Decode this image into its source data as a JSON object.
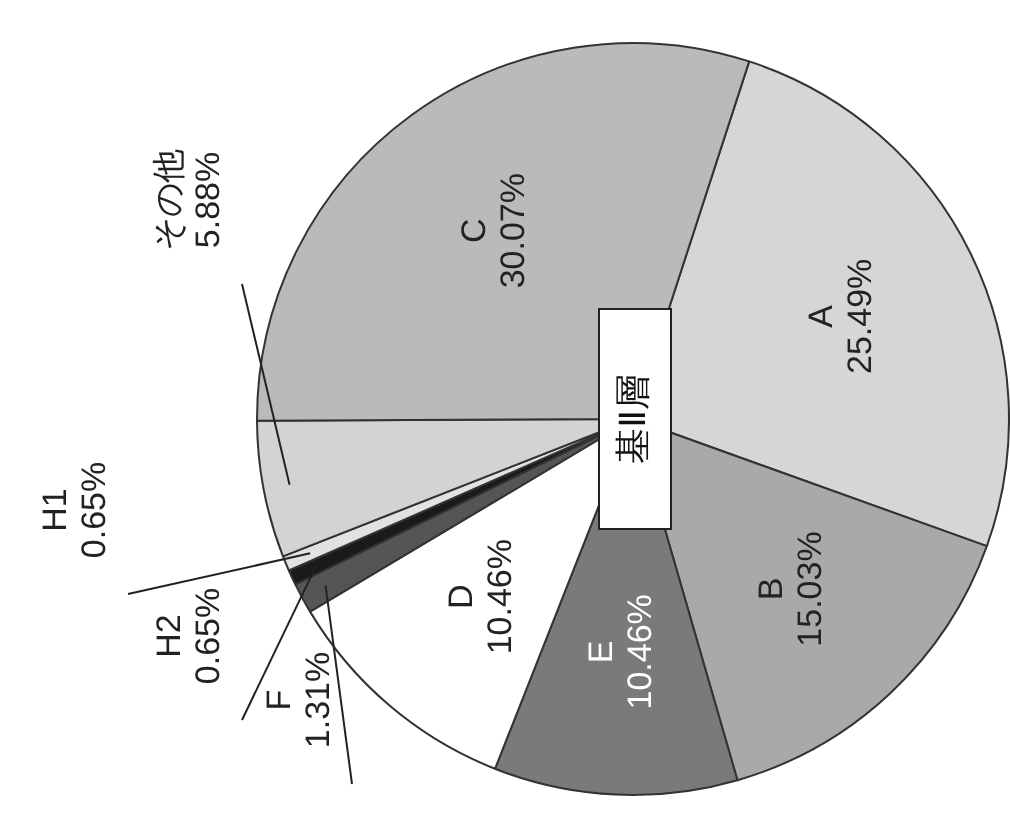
{
  "chart_data": {
    "type": "pie",
    "title": "基Ⅱ層",
    "categories": [
      "A",
      "B",
      "E",
      "D",
      "F",
      "H2",
      "H1",
      "その他",
      "C"
    ],
    "values": [
      25.49,
      15.03,
      10.46,
      10.46,
      1.31,
      0.65,
      0.65,
      5.88,
      30.07
    ],
    "value_labels": [
      "25.49%",
      "15.03%",
      "10.46%",
      "10.46%",
      "1.31%",
      "0.65%",
      "0.65%",
      "5.88%",
      "30.07%"
    ],
    "colors": [
      "#d6d6d6",
      "#a9a9a9",
      "#7a7a7a",
      "#ffffff",
      "#555555",
      "#1a1a1a",
      "#e2e2e2",
      "#d3d3d3",
      "#bababa"
    ],
    "legend": false
  }
}
